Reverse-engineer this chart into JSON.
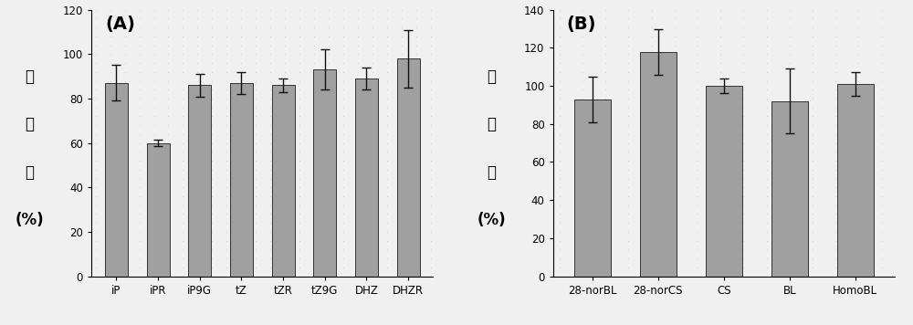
{
  "panel_A": {
    "label": "(A)",
    "categories": [
      "iP",
      "iPR",
      "iP9G",
      "tZ",
      "tZR",
      "tZ9G",
      "DHZ",
      "DHZR"
    ],
    "values": [
      87,
      60,
      86,
      87,
      86,
      93,
      89,
      98
    ],
    "errors": [
      8,
      1.5,
      5,
      5,
      3,
      9,
      5,
      13
    ],
    "ylim": [
      0,
      120
    ],
    "yticks": [
      0,
      20,
      40,
      60,
      80,
      100,
      120
    ],
    "ylabel_lines": [
      "回",
      "收",
      "率",
      "(%)"
    ]
  },
  "panel_B": {
    "label": "(B)",
    "categories": [
      "28-norBL",
      "28-norCS",
      "CS",
      "BL",
      "HomoBL"
    ],
    "values": [
      93,
      118,
      100,
      92,
      101
    ],
    "errors": [
      12,
      12,
      4,
      17,
      6
    ],
    "ylim": [
      0,
      140
    ],
    "yticks": [
      0,
      20,
      40,
      60,
      80,
      100,
      120,
      140
    ],
    "ylabel_lines": [
      "回",
      "收",
      "率",
      "(%)"
    ]
  },
  "bar_color": "#a0a0a0",
  "bar_edgecolor": "#333333",
  "background_color": "#f0f0f0",
  "dot_color": "#c8c8c8",
  "errorbar_color": "#111111",
  "label_fontsize": 14,
  "tick_fontsize": 8.5,
  "ylabel_fontsize": 12,
  "figure_width": 10.0,
  "figure_height": 3.56
}
